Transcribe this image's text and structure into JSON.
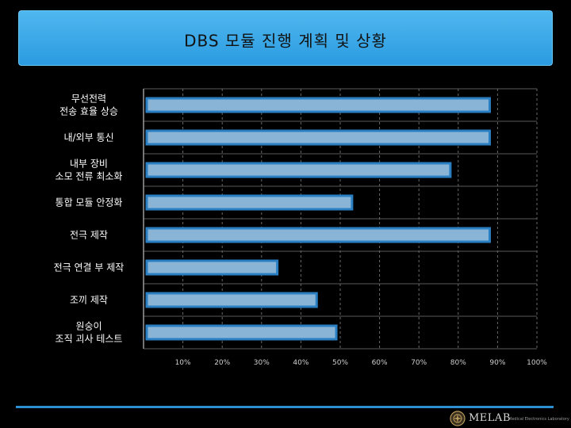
{
  "title": "DBS 모듈 진행 계획 및 상황",
  "chart_data": {
    "type": "bar",
    "orientation": "horizontal",
    "categories": [
      "무선전력\n전송 효율 상승",
      "내/외부 통신",
      "내부 장비\n소모 전류 최소화",
      "통합 모듈 안정화",
      "전극 제작",
      "전극 연결 부  제작",
      "조끼 제작",
      "원숭이\n조직 괴사 테스트"
    ],
    "values": [
      88,
      88,
      78,
      53,
      88,
      34,
      44,
      49
    ],
    "xlim": [
      0,
      100
    ],
    "x_ticks": [
      10,
      20,
      30,
      40,
      50,
      60,
      70,
      80,
      90,
      100
    ],
    "x_tick_labels": [
      "10%",
      "20%",
      "30%",
      "40%",
      "50%",
      "60%",
      "70%",
      "80%",
      "90%",
      "100%"
    ],
    "grid": true,
    "bar_color": "#8ab4d6",
    "bar_border_color": "#2a7fc2"
  },
  "footer": {
    "logo_text": "MELAB",
    "logo_subtext": "Medical Electronics Laboratory",
    "line_color": "#2e8fd0"
  }
}
